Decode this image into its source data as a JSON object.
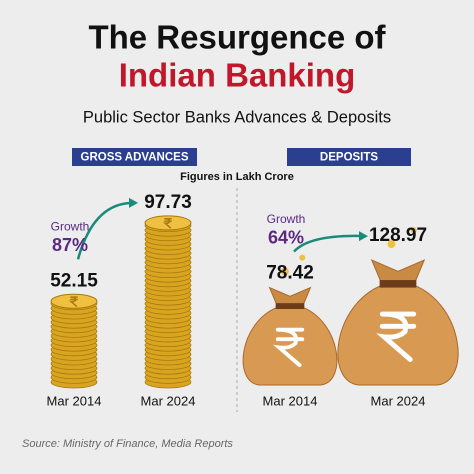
{
  "title_line1": "The Resurgence of",
  "title_line2": "Indian Banking",
  "subtitle": "Public Sector Banks Advances & Deposits",
  "note": "Figures in Lakh Crore",
  "source": "Source: Ministry of Finance, Media Reports",
  "chart_data": [
    {
      "type": "coins",
      "title": "GROSS ADVANCES",
      "categories": [
        "Mar 2014",
        "Mar 2024"
      ],
      "values": [
        52.15,
        97.73
      ],
      "growth_label": "Growth",
      "growth": "87%",
      "color": "#d9a520"
    },
    {
      "type": "bags",
      "title": "DEPOSITS",
      "categories": [
        "Mar 2014",
        "Mar 2024"
      ],
      "values": [
        78.42,
        128.97
      ],
      "growth_label": "Growth",
      "growth": "64%",
      "color": "#d89a52"
    }
  ]
}
